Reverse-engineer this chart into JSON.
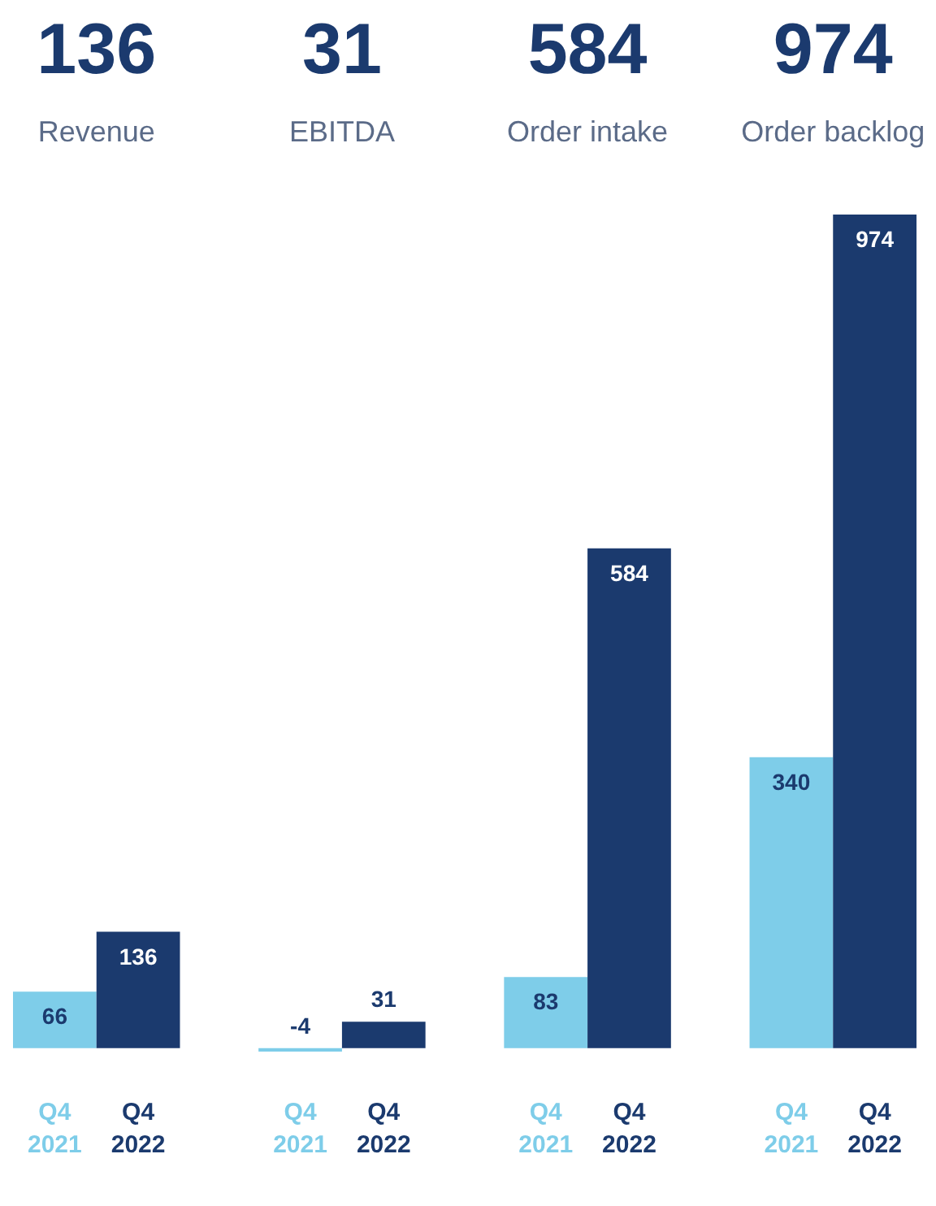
{
  "chart_data": {
    "type": "bar",
    "categories": [
      "Revenue",
      "EBITDA",
      "Order intake",
      "Order backlog"
    ],
    "series": [
      {
        "name": "Q4\n2021",
        "color": "#7ecde9",
        "values": [
          66,
          -4,
          83,
          340
        ]
      },
      {
        "name": "Q4\n2022",
        "color": "#1b3a6e",
        "values": [
          136,
          31,
          584,
          974
        ]
      }
    ],
    "data_labels": true,
    "annotations": [
      "136",
      "31",
      "584",
      "974"
    ]
  }
}
